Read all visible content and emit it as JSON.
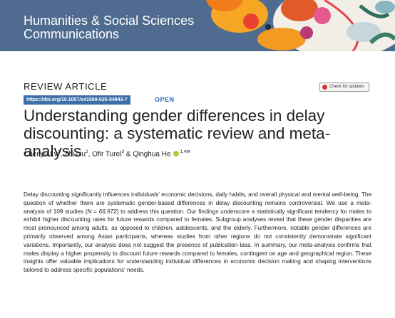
{
  "journal": {
    "line1": "Humanities & Social Sciences",
    "line2": "Communications"
  },
  "article_type": "REVIEW ARTICLE",
  "doi": "https://doi.org/10.1057/s41599-025-04843-7",
  "access": "OPEN",
  "check_updates": "Check for updates",
  "title": "Understanding gender differences in delay discounting: a systematic review and meta-analysis",
  "authors": [
    {
      "name": "Chenyu Lv",
      "sup": "1",
      "sep": ", "
    },
    {
      "name": "Zhi Liu",
      "sup": "2",
      "sep": ", "
    },
    {
      "name": "Ofir Turel",
      "sup": "3",
      "sep": " & "
    },
    {
      "name": "Qinghua He",
      "sup": "1,4✉",
      "sep": ""
    }
  ],
  "abstract": {
    "part1": "Delay discounting significantly influences individuals' economic decisions, daily habits, and overall physical and mental well-being. The question of whether there are systematic gender-based differences in delay discounting remains controversial. We use a meta-analysis of 109 studies (",
    "stat": "N = 66,972",
    "part2": ") to address this question. Our findings underscore a statistically significant tendency for males to exhibit higher discounting rates for future rewards compared to females. Subgroup analyses reveal that these gender disparities are most pronounced among adults, as opposed to children, adolescents, and the elderly. Furthermore, notable gender differences are primarily observed among Asian participants, whereas studies from other regions do not consistently demonstrate significant variations. Importantly, our analysis does not suggest the presence of publication bias. In summary, our meta-analysis confirms that males display a higher propensity to discount future rewards compared to females, contingent on age and geographical region. These insights offer valuable implications for understanding individual differences in economic decision making and shaping interventions tailored to address specific populations' needs."
  }
}
